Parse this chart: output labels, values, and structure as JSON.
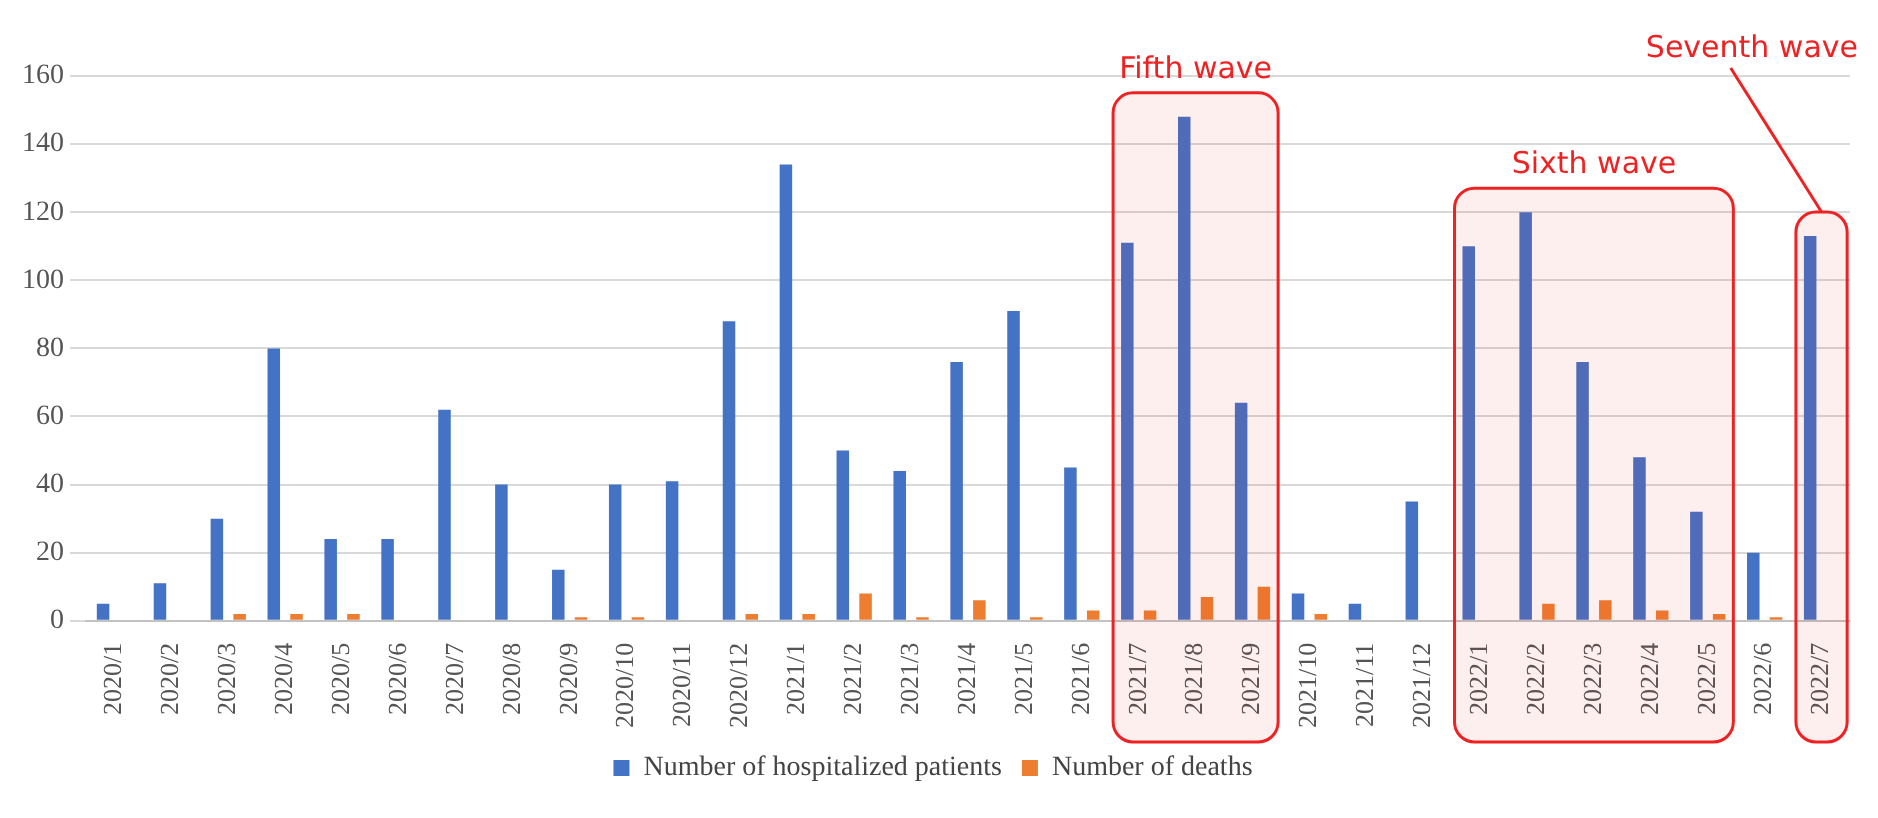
{
  "chart_data": {
    "type": "bar",
    "categories": [
      "2020/1",
      "2020/2",
      "2020/3",
      "2020/4",
      "2020/5",
      "2020/6",
      "2020/7",
      "2020/8",
      "2020/9",
      "2020/10",
      "2020/11",
      "2020/12",
      "2021/1",
      "2021/2",
      "2021/3",
      "2021/4",
      "2021/5",
      "2021/6",
      "2021/7",
      "2021/8",
      "2021/9",
      "2021/10",
      "2021/11",
      "2021/12",
      "2022/1",
      "2022/2",
      "2022/3",
      "2022/4",
      "2022/5",
      "2022/6",
      "2022/7"
    ],
    "series": [
      {
        "name": "Number of hospitalized patients",
        "color": "#4472c4",
        "values": [
          5,
          11,
          30,
          80,
          24,
          24,
          62,
          40,
          15,
          40,
          41,
          88,
          134,
          50,
          44,
          76,
          91,
          45,
          111,
          148,
          64,
          8,
          5,
          35,
          110,
          120,
          76,
          48,
          32,
          20,
          113
        ]
      },
      {
        "name": "Number of deaths",
        "color": "#ed7d31",
        "values": [
          0,
          0,
          2,
          2,
          2,
          0,
          0,
          0,
          1,
          1,
          0,
          2,
          2,
          8,
          1,
          6,
          1,
          3,
          3,
          7,
          10,
          2,
          0,
          0,
          0,
          5,
          6,
          3,
          2,
          1,
          0
        ]
      }
    ],
    "ylim": [
      0,
      160
    ],
    "yticks": [
      0,
      20,
      40,
      60,
      80,
      100,
      120,
      140,
      160
    ],
    "grid": "y",
    "legend": "bottom",
    "bands": [
      {
        "axis": "x",
        "from": "2021/7",
        "to": "2021/9",
        "label": "Fifth wave",
        "color": "#ee2222"
      },
      {
        "axis": "x",
        "from": "2022/1",
        "to": "2022/5",
        "label": "Sixth wave",
        "color": "#ee2222"
      },
      {
        "axis": "x",
        "from": "2022/7",
        "to": "2022/7",
        "label": "Seventh wave",
        "color": "#ee2222"
      }
    ]
  }
}
